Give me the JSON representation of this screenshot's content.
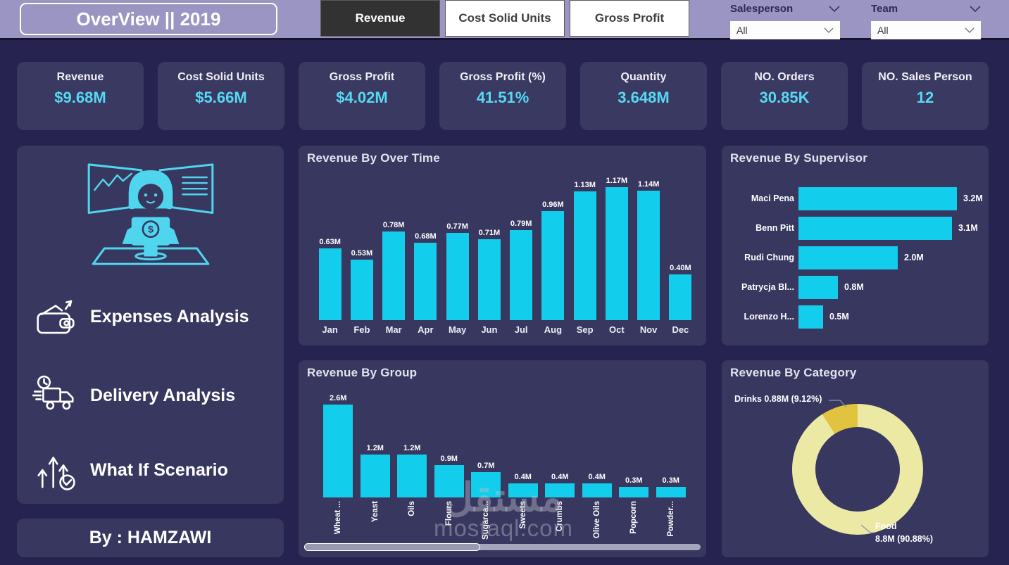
{
  "header": {
    "title": "OverView || 2019",
    "tabs": [
      {
        "label": "Revenue",
        "active": true
      },
      {
        "label": "Cost Solid Units",
        "active": false
      },
      {
        "label": "Gross Profit",
        "active": false
      }
    ],
    "filters": [
      {
        "label": "Salesperson",
        "value": "All"
      },
      {
        "label": "Team",
        "value": "All"
      }
    ]
  },
  "kpis": [
    {
      "label": "Revenue",
      "value": "$9.68M"
    },
    {
      "label": "Cost Solid Units",
      "value": "$5.66M"
    },
    {
      "label": "Gross Profit",
      "value": "$4.02M"
    },
    {
      "label": "Gross Profit (%)",
      "value": "41.51%"
    },
    {
      "label": "Quantity",
      "value": "3.648M"
    },
    {
      "label": "NO. Orders",
      "value": "30.85K"
    },
    {
      "label": "NO. Sales Person",
      "value": "12"
    }
  ],
  "sidebar": {
    "items": [
      {
        "label": "Expenses Analysis",
        "icon": "wallet-icon"
      },
      {
        "label": "Delivery Analysis",
        "icon": "delivery-truck-icon"
      },
      {
        "label": "What If Scenario",
        "icon": "growth-arrows-icon"
      }
    ],
    "credit": "By : HAMZAWI"
  },
  "chart_data": [
    {
      "type": "bar",
      "title": "Revenue By Over Time",
      "categories": [
        "Jan",
        "Feb",
        "Mar",
        "Apr",
        "May",
        "Jun",
        "Jul",
        "Aug",
        "Sep",
        "Oct",
        "Nov",
        "Dec"
      ],
      "values": [
        0.63,
        0.53,
        0.78,
        0.68,
        0.77,
        0.71,
        0.79,
        0.96,
        1.13,
        1.17,
        1.14,
        0.4
      ],
      "labels": [
        "0.63M",
        "0.53M",
        "0.78M",
        "0.68M",
        "0.77M",
        "0.71M",
        "0.79M",
        "0.96M",
        "1.13M",
        "1.17M",
        "1.14M",
        "0.40M"
      ],
      "unit": "M",
      "bar_color": "#12cdeb",
      "ylim": [
        0,
        1.17
      ],
      "grid": false
    },
    {
      "type": "bar",
      "title": "Revenue By Supervisor",
      "orientation": "horizontal",
      "categories": [
        "Maci Pena",
        "Benn Pitt",
        "Rudi Chung",
        "Patrycja Bl...",
        "Lorenzo H..."
      ],
      "values": [
        3.2,
        3.1,
        2.0,
        0.8,
        0.5
      ],
      "labels": [
        "3.2M",
        "3.1M",
        "2.0M",
        "0.8M",
        "0.5M"
      ],
      "unit": "M",
      "bar_color": "#12cdeb",
      "xlim": [
        0,
        3.2
      ],
      "grid": false
    },
    {
      "type": "bar",
      "title": "Revenue By Group",
      "categories": [
        "Wheat ...",
        "Yeast",
        "Oils",
        "Flours",
        "Sugarca...",
        "Sweets",
        "Crumbs",
        "Olive Oils",
        "Popcorn",
        "Powder..."
      ],
      "values": [
        2.6,
        1.2,
        1.2,
        0.9,
        0.7,
        0.4,
        0.4,
        0.4,
        0.3,
        0.3
      ],
      "labels": [
        "2.6M",
        "1.2M",
        "1.2M",
        "0.9M",
        "0.7M",
        "0.4M",
        "0.4M",
        "0.4M",
        "0.3M",
        "0.3M"
      ],
      "unit": "M",
      "bar_color": "#12cdeb",
      "ylim": [
        0,
        2.6
      ],
      "grid": false,
      "scrollable": true
    },
    {
      "type": "pie",
      "title": "Revenue By Category",
      "slices": [
        {
          "label": "Food",
          "value": 8.8,
          "pct": 90.88,
          "color": "#ece9a5"
        },
        {
          "label": "Drinks",
          "value": 0.88,
          "pct": 9.12,
          "color": "#e2c33f"
        }
      ],
      "callouts": {
        "drinks": "Drinks 0.88M (9.12%)",
        "food_line1": "Food",
        "food_line2": "8.8M (90.88%)"
      },
      "legend_position": "callouts",
      "donut": true
    }
  ],
  "watermark": {
    "logo_text": "مستقل",
    "site_text": "mostaql.com"
  },
  "colors": {
    "header_bg": "#9b95c3",
    "page_bg": "#272350",
    "panel_bg": "#383760",
    "card_bg": "#3a3962",
    "accent_cyan": "#12cdeb",
    "value_cyan": "#56d9f3",
    "active_tab_bg": "#323232",
    "donut_food": "#ece9a5",
    "donut_drinks": "#e2c33f"
  }
}
